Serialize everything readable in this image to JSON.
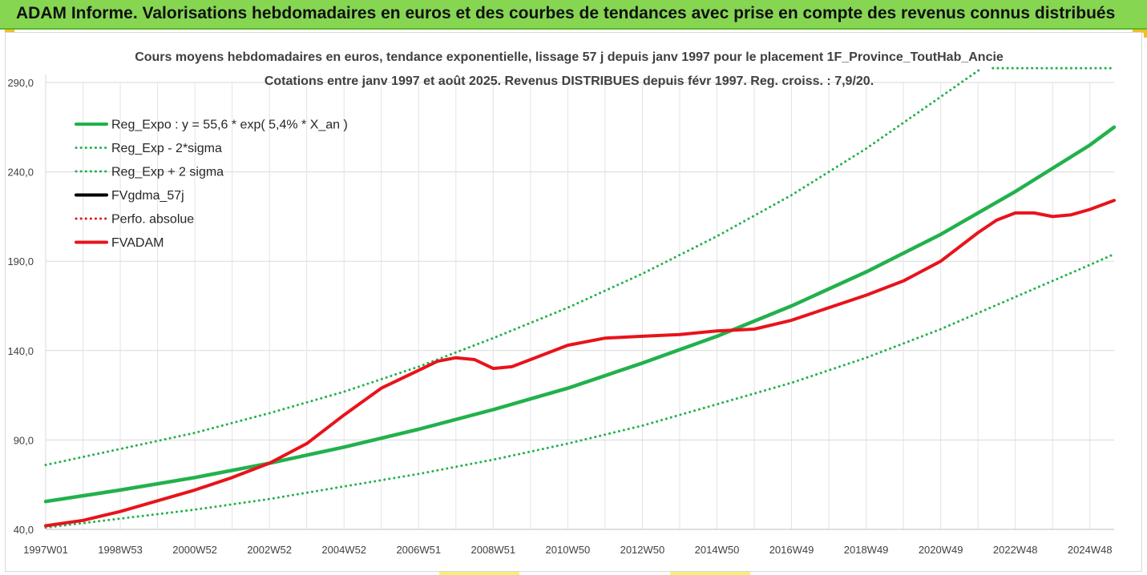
{
  "banner": {
    "title": "ADAM Informe. Valorisations hebdomadaires en euros et des courbes de tendances avec prise en compte des revenus connus distribués"
  },
  "chart_data": {
    "type": "line",
    "title": "Cours moyens hebdomadaires en euros, tendance exponentielle, lissage 57 j depuis janv 1997 pour le placement 1F_Province_ToutHab_Ancie",
    "subtitle": "Cotations entre janv 1997 et août 2025. Revenus DISTRIBUES depuis févr 1997. Reg. croiss. : 7,9/20.",
    "xlabel": "",
    "ylabel": "",
    "ylim": [
      40,
      290
    ],
    "xlim": [
      1997.0,
      2025.65
    ],
    "y_ticks": [
      "290,0",
      "240,0",
      "190,0",
      "140,0",
      "90,0",
      "40,0"
    ],
    "x_ticks": [
      {
        "label": "1997W01",
        "x": 1997.0
      },
      {
        "label": "1998W53",
        "x": 1999.0
      },
      {
        "label": "2000W52",
        "x": 2001.0
      },
      {
        "label": "2002W52",
        "x": 2003.0
      },
      {
        "label": "2004W52",
        "x": 2005.0
      },
      {
        "label": "2006W51",
        "x": 2007.0
      },
      {
        "label": "2008W51",
        "x": 2009.0
      },
      {
        "label": "2010W50",
        "x": 2011.0
      },
      {
        "label": "2012W50",
        "x": 2013.0
      },
      {
        "label": "2014W50",
        "x": 2015.0
      },
      {
        "label": "2016W49",
        "x": 2017.0
      },
      {
        "label": "2018W49",
        "x": 2019.0
      },
      {
        "label": "2020W49",
        "x": 2021.0
      },
      {
        "label": "2022W48",
        "x": 2023.0
      },
      {
        "label": "2024W48",
        "x": 2025.0
      }
    ],
    "grid": true,
    "legend_position": "top-left",
    "colors": {
      "green": "#22b14c",
      "red": "#e8131b",
      "black": "#000000"
    },
    "series": [
      {
        "name": "Reg_Expo : y = 55,6 * exp( 5,4% *  X_an )",
        "style": "solid",
        "color": "#22b14c",
        "x": [
          1997,
          1999,
          2001,
          2003,
          2005,
          2007,
          2009,
          2011,
          2013,
          2015,
          2017,
          2019,
          2021,
          2023,
          2025,
          2025.65
        ],
        "y": [
          55.6,
          62,
          69,
          77,
          86,
          96,
          107,
          119,
          133,
          148,
          165,
          184,
          205,
          229,
          255,
          265
        ]
      },
      {
        "name": "Reg_Exp - 2*sigma",
        "style": "dotted",
        "color": "#22b14c",
        "x": [
          1997,
          1999,
          2001,
          2003,
          2005,
          2007,
          2009,
          2011,
          2013,
          2015,
          2017,
          2019,
          2021,
          2023,
          2025,
          2025.65
        ],
        "y": [
          41,
          46,
          51,
          57,
          64,
          71,
          79,
          88,
          98,
          110,
          122,
          136,
          152,
          170,
          188,
          194
        ]
      },
      {
        "name": "Reg_Exp + 2 sigma",
        "style": "dotted",
        "color": "#22b14c",
        "x": [
          1997,
          1999,
          2001,
          2003,
          2005,
          2007,
          2009,
          2011,
          2013,
          2015,
          2017,
          2019,
          2021,
          2022.1
        ],
        "y": [
          76,
          85,
          94,
          105,
          117,
          131,
          147,
          164,
          183,
          204,
          227,
          253,
          282,
          298
        ]
      },
      {
        "name": "FVgdma_57j",
        "style": "solid",
        "color": "#000000",
        "x": [],
        "y": []
      },
      {
        "name": "Perfo. absolue",
        "style": "dotted",
        "color": "#e8131b",
        "x": [],
        "y": []
      },
      {
        "name": "FVADAM",
        "style": "solid",
        "color": "#e8131b",
        "x": [
          1997,
          1998,
          1999,
          2000,
          2001,
          2002,
          2003,
          2004,
          2005,
          2006,
          2007,
          2007.5,
          2008,
          2008.5,
          2009,
          2009.5,
          2010,
          2011,
          2012,
          2013,
          2014,
          2015,
          2016,
          2017,
          2018,
          2019,
          2020,
          2021,
          2022,
          2022.5,
          2023,
          2023.5,
          2024,
          2024.5,
          2025,
          2025.65
        ],
        "y": [
          42,
          45,
          50,
          56,
          62,
          69,
          77,
          88,
          104,
          119,
          129,
          134,
          136,
          135,
          130,
          131,
          135,
          143,
          147,
          148,
          149,
          151,
          152,
          157,
          164,
          171,
          179,
          190,
          206,
          213,
          217,
          217,
          215,
          216,
          219,
          224
        ]
      }
    ],
    "extra_series": {
      "name": "upper-2sigma-continuation",
      "style": "dotted",
      "color": "#22b14c",
      "x": [
        2022.4,
        2025.65
      ],
      "y": [
        298,
        298
      ]
    }
  }
}
